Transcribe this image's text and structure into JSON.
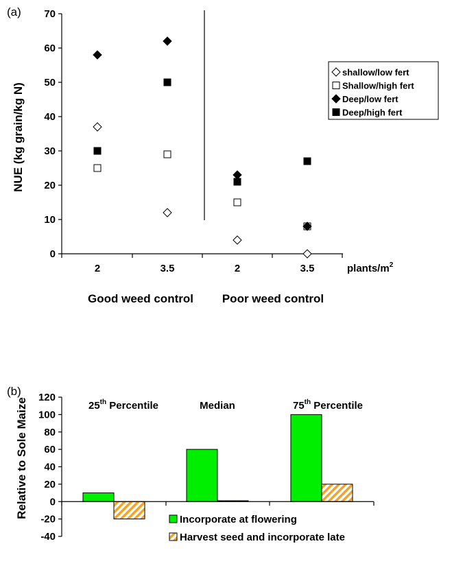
{
  "colors": {
    "green": "#00ee00",
    "orange": "#f7a227",
    "black": "#000000",
    "white": "#ffffff"
  },
  "chart_data": [
    {
      "type": "scatter",
      "panel_label": "(a)",
      "ylabel": "NUE (kg grain/kg N)",
      "xlabel": "plants/m",
      "xlabel_superscript": "2",
      "ylim": [
        0,
        70
      ],
      "yticks": [
        0,
        10,
        20,
        30,
        40,
        50,
        60,
        70
      ],
      "categories": [
        "2",
        "3.5",
        "2",
        "3.5"
      ],
      "groups": [
        "Good weed control",
        "Poor weed control"
      ],
      "grid": false,
      "legend_position": "right",
      "series": [
        {
          "name": "shallow/low fert",
          "marker": "diamond-open",
          "values": [
            37,
            12,
            4,
            0
          ]
        },
        {
          "name": "Shallow/high fert",
          "marker": "square-open",
          "values": [
            25,
            29,
            15,
            8
          ]
        },
        {
          "name": "Deep/low fert",
          "marker": "diamond-filled",
          "values": [
            58,
            62,
            23,
            8
          ]
        },
        {
          "name": "Deep/high fert",
          "marker": "square-filled",
          "values": [
            30,
            50,
            21,
            27
          ]
        }
      ]
    },
    {
      "type": "bar",
      "panel_label": "(b)",
      "ylabel": "Relative to Sole Maize",
      "ylim": [
        -40,
        120
      ],
      "yticks": [
        -40,
        -20,
        0,
        20,
        40,
        60,
        80,
        100,
        120
      ],
      "categories": [
        {
          "base": "25",
          "sup": "th",
          "rest": " Percentile"
        },
        {
          "base": "Median",
          "sup": "",
          "rest": ""
        },
        {
          "base": "75",
          "sup": "th",
          "rest": " Percentile"
        }
      ],
      "grid": false,
      "legend_position": "bottom",
      "series": [
        {
          "name": "Incorporate at flowering",
          "fill": "solid-green",
          "values": [
            10,
            60,
            100
          ]
        },
        {
          "name": "Harvest seed and incorporate late",
          "fill": "orange-hatch",
          "values": [
            -20,
            1,
            20
          ]
        }
      ]
    }
  ]
}
